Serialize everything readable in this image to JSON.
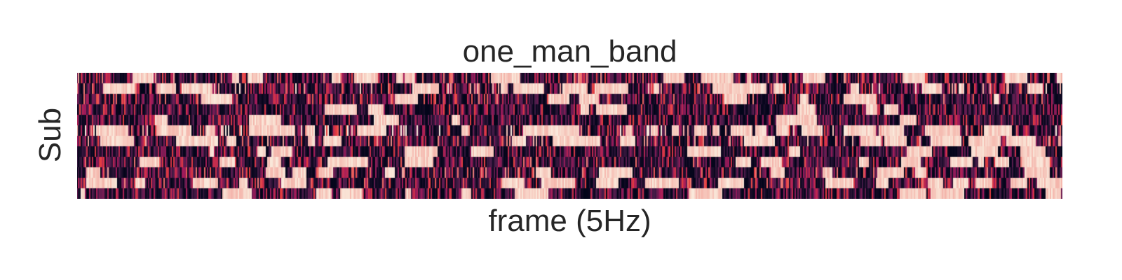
{
  "chart_data": {
    "type": "heatmap",
    "title": "one_man_band",
    "xlabel": "frame (5Hz)",
    "ylabel": "Sub",
    "x_tick_labels_visible": false,
    "y_tick_labels_visible": false,
    "n_rows": 12,
    "n_cols": 704,
    "colormap": "rocket",
    "colorbar": false,
    "value_range": [
      0,
      1
    ],
    "colors": {
      "low": "#03051a",
      "mid_low": "#4c1d4b",
      "mid": "#a11a5b",
      "mid_high": "#e83f3f",
      "high": "#faebdd"
    },
    "row_profiles": [
      {
        "row": 1,
        "mean_level": 0.35
      },
      {
        "row": 2,
        "mean_level": 0.45
      },
      {
        "row": 3,
        "mean_level": 0.3
      },
      {
        "row": 4,
        "mean_level": 0.22
      },
      {
        "row": 5,
        "mean_level": 0.2
      },
      {
        "row": 6,
        "mean_level": 0.55
      },
      {
        "row": 7,
        "mean_level": 0.38
      },
      {
        "row": 8,
        "mean_level": 0.18
      },
      {
        "row": 9,
        "mean_level": 0.3
      },
      {
        "row": 10,
        "mean_level": 0.35
      },
      {
        "row": 11,
        "mean_level": 0.3
      },
      {
        "row": 12,
        "mean_level": 0.2
      }
    ]
  }
}
